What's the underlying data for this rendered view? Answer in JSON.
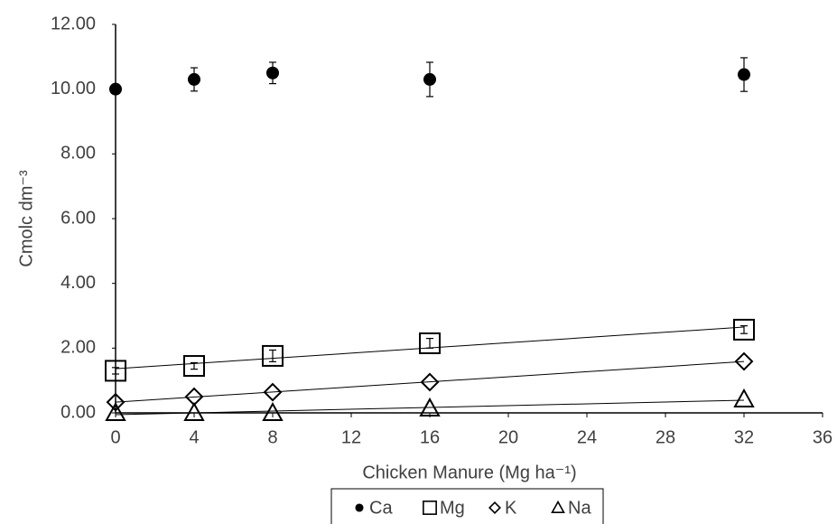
{
  "chart_data": {
    "type": "scatter",
    "x_label": "Chicken Manure (Mg ha⁻¹)",
    "y_label": "Cmolc dm⁻³",
    "x": [
      0,
      4,
      8,
      16,
      32
    ],
    "xlim": [
      0,
      36
    ],
    "xticks": [
      0,
      4,
      8,
      12,
      16,
      20,
      24,
      28,
      32,
      36
    ],
    "ylim": [
      0,
      12
    ],
    "yticks": [
      {
        "value": 0,
        "label": "0.00"
      },
      {
        "value": 2,
        "label": "2.00"
      },
      {
        "value": 4,
        "label": "4.00"
      },
      {
        "value": 6,
        "label": "6.00"
      },
      {
        "value": 8,
        "label": "8.00"
      },
      {
        "value": 10,
        "label": "10.00"
      },
      {
        "value": 12,
        "label": "12.00"
      }
    ],
    "grid": false,
    "legend": "bottom",
    "series": [
      {
        "name": "Ca",
        "marker": "circle",
        "color": "#000000",
        "trendline": false,
        "values": [
          10.0,
          10.3,
          10.5,
          10.3,
          10.45
        ],
        "errors": [
          null,
          0.36,
          0.33,
          0.53,
          0.52
        ]
      },
      {
        "name": "Mg",
        "marker": "square",
        "color": "#000000",
        "trendline": true,
        "values": [
          1.3,
          1.45,
          1.76,
          2.15,
          2.57
        ],
        "errors": [
          0.1,
          0.1,
          0.18,
          0.15,
          0.12
        ]
      },
      {
        "name": "K",
        "marker": "diamond",
        "color": "#000000",
        "trendline": true,
        "values": [
          0.33,
          0.5,
          0.64,
          0.95,
          1.59
        ]
      },
      {
        "name": "Na",
        "marker": "triangle",
        "color": "#000000",
        "trendline": true,
        "values": [
          0,
          0,
          0,
          0.14,
          0.42
        ]
      }
    ]
  }
}
